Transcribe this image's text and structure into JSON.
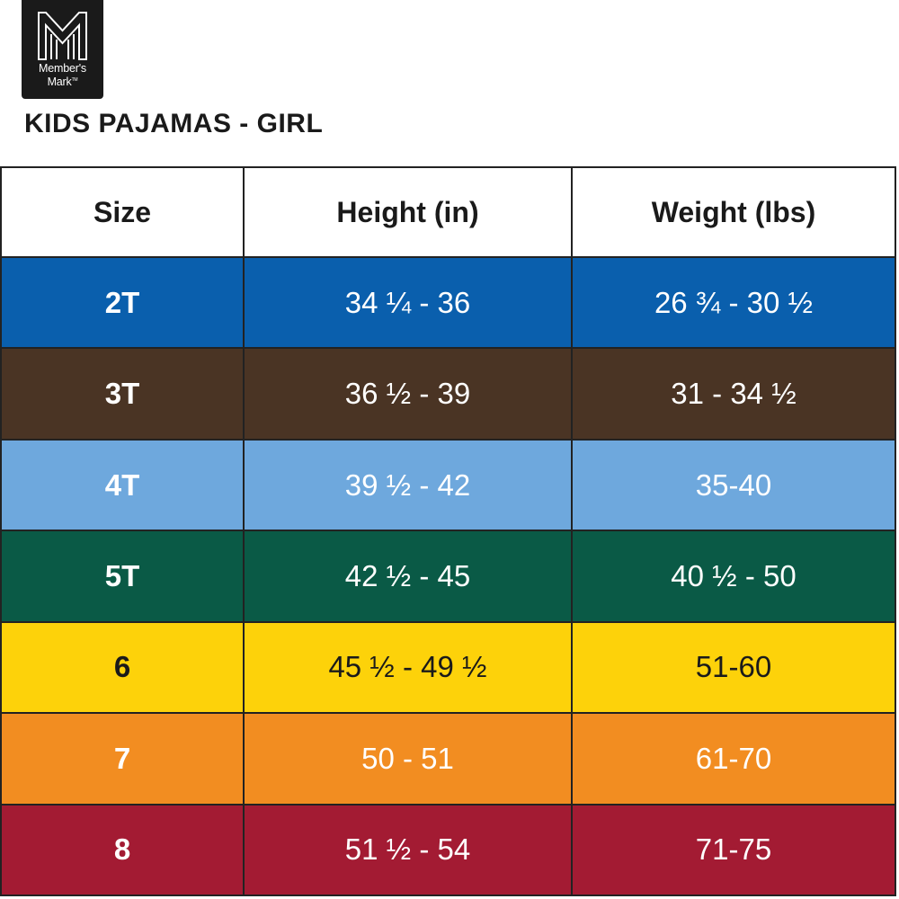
{
  "brand": {
    "line1": "Member's",
    "line2": "Mark",
    "trademark": "TM"
  },
  "title": "KIDS PAJAMAS - GIRL",
  "table": {
    "headers": [
      "Size",
      "Height (in)",
      "Weight (lbs)"
    ],
    "rows": [
      {
        "size": "2T",
        "height": "34 ¼ - 36",
        "weight": "26 ¾ - 30 ½",
        "color": "#0a5fad",
        "text_color": "#ffffff"
      },
      {
        "size": "3T",
        "height": "36 ½ - 39",
        "weight": "31 - 34 ½",
        "color": "#4a3424",
        "text_color": "#ffffff"
      },
      {
        "size": "4T",
        "height": "39 ½ - 42",
        "weight": "35-40",
        "color": "#6ea8dd",
        "text_color": "#ffffff"
      },
      {
        "size": "5T",
        "height": "42 ½ - 45",
        "weight": "40 ½ - 50",
        "color": "#0a5a46",
        "text_color": "#ffffff"
      },
      {
        "size": "6",
        "height": "45 ½ - 49 ½",
        "weight": "51-60",
        "color": "#fdd20a",
        "text_color": "#1a1a1a"
      },
      {
        "size": "7",
        "height": "50 - 51",
        "weight": "61-70",
        "color": "#f28d21",
        "text_color": "#ffffff"
      },
      {
        "size": "8",
        "height": "51 ½ - 54",
        "weight": "71-75",
        "color": "#a31b33",
        "text_color": "#ffffff"
      }
    ]
  }
}
